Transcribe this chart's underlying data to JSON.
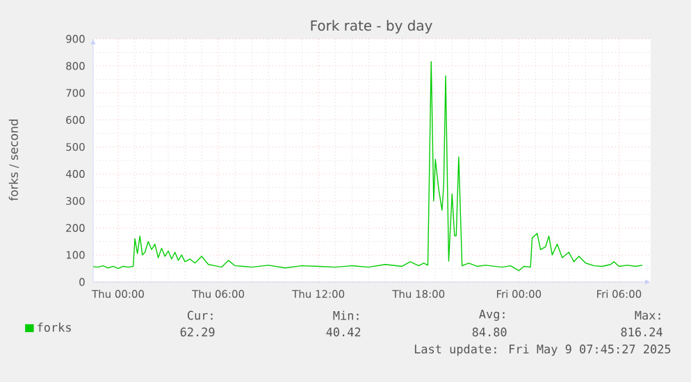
{
  "chart_data": {
    "type": "line",
    "title": "Fork rate - by day",
    "ylabel": "forks / second",
    "xlim": [
      "2025-05-07T22:30",
      "2025-05-09T07:54"
    ],
    "ylim": [
      0,
      900
    ],
    "xticks": [
      {
        "value": "2025-05-08T00:00",
        "label": "Thu 00:00"
      },
      {
        "value": "2025-05-08T06:00",
        "label": "Thu 06:00"
      },
      {
        "value": "2025-05-08T12:00",
        "label": "Thu 12:00"
      },
      {
        "value": "2025-05-08T18:00",
        "label": "Thu 18:00"
      },
      {
        "value": "2025-05-09T00:00",
        "label": "Fri 00:00"
      },
      {
        "value": "2025-05-09T06:00",
        "label": "Fri 06:00"
      }
    ],
    "yticks": [
      0,
      100,
      200,
      300,
      400,
      500,
      600,
      700,
      800,
      900
    ],
    "grid": true,
    "legend": "bottom",
    "marker": "none",
    "line_style": "solid",
    "annotations": [
      "Cur:",
      "Min:",
      "Avg:",
      "Max:",
      "62.29",
      "40.42",
      "84.80",
      "816.24",
      "Last update: Fri May 9 07:45:27 2025"
    ],
    "series": [
      {
        "name": "forks",
        "color": "#00cc00",
        "x": [
          "2025-05-07T22:30",
          "2025-05-07T22:48",
          "2025-05-07T23:06",
          "2025-05-07T23:24",
          "2025-05-07T23:42",
          "2025-05-08T00:00",
          "2025-05-08T00:18",
          "2025-05-08T00:36",
          "2025-05-08T00:54",
          "2025-05-08T01:00",
          "2025-05-08T01:09",
          "2025-05-08T01:18",
          "2025-05-08T01:27",
          "2025-05-08T01:36",
          "2025-05-08T01:48",
          "2025-05-08T02:00",
          "2025-05-08T02:12",
          "2025-05-08T02:24",
          "2025-05-08T02:36",
          "2025-05-08T02:48",
          "2025-05-08T03:00",
          "2025-05-08T03:12",
          "2025-05-08T03:24",
          "2025-05-08T03:36",
          "2025-05-08T03:48",
          "2025-05-08T04:00",
          "2025-05-08T04:18",
          "2025-05-08T04:36",
          "2025-05-08T05:00",
          "2025-05-08T05:24",
          "2025-05-08T05:48",
          "2025-05-08T06:12",
          "2025-05-08T06:36",
          "2025-05-08T07:00",
          "2025-05-08T07:30",
          "2025-05-08T08:00",
          "2025-05-08T09:00",
          "2025-05-08T10:00",
          "2025-05-08T11:00",
          "2025-05-08T12:00",
          "2025-05-08T13:00",
          "2025-05-08T14:00",
          "2025-05-08T15:00",
          "2025-05-08T16:00",
          "2025-05-08T17:00",
          "2025-05-08T17:30",
          "2025-05-08T18:00",
          "2025-05-08T18:18",
          "2025-05-08T18:33",
          "2025-05-08T18:45",
          "2025-05-08T18:54",
          "2025-05-08T19:00",
          "2025-05-08T19:12",
          "2025-05-08T19:24",
          "2025-05-08T19:30",
          "2025-05-08T19:37",
          "2025-05-08T19:48",
          "2025-05-08T20:00",
          "2025-05-08T20:09",
          "2025-05-08T20:15",
          "2025-05-08T20:24",
          "2025-05-08T20:36",
          "2025-05-08T21:00",
          "2025-05-08T21:30",
          "2025-05-08T22:00",
          "2025-05-08T23:00",
          "2025-05-08T23:30",
          "2025-05-09T00:00",
          "2025-05-09T00:18",
          "2025-05-09T00:42",
          "2025-05-09T00:48",
          "2025-05-09T01:06",
          "2025-05-09T01:18",
          "2025-05-09T01:36",
          "2025-05-09T01:48",
          "2025-05-09T02:00",
          "2025-05-09T02:18",
          "2025-05-09T02:36",
          "2025-05-09T03:00",
          "2025-05-09T03:18",
          "2025-05-09T03:36",
          "2025-05-09T04:00",
          "2025-05-09T04:30",
          "2025-05-09T05:00",
          "2025-05-09T05:30",
          "2025-05-09T05:42",
          "2025-05-09T06:00",
          "2025-05-09T06:30",
          "2025-05-09T07:00",
          "2025-05-09T07:24"
        ],
        "values": [
          57,
          55,
          60,
          52,
          58,
          50,
          58,
          55,
          58,
          160,
          105,
          170,
          100,
          110,
          150,
          120,
          140,
          90,
          125,
          95,
          115,
          85,
          110,
          80,
          100,
          75,
          85,
          70,
          95,
          65,
          60,
          55,
          80,
          60,
          58,
          55,
          62,
          52,
          60,
          58,
          55,
          60,
          55,
          65,
          58,
          75,
          60,
          70,
          62,
          816,
          300,
          454,
          343,
          266,
          360,
          763,
          77,
          326,
          171,
          171,
          463,
          60,
          70,
          58,
          62,
          55,
          60,
          42,
          58,
          55,
          163,
          180,
          120,
          130,
          170,
          100,
          140,
          90,
          110,
          75,
          95,
          70,
          60,
          58,
          65,
          75,
          58,
          62,
          58,
          62
        ]
      }
    ]
  }
}
